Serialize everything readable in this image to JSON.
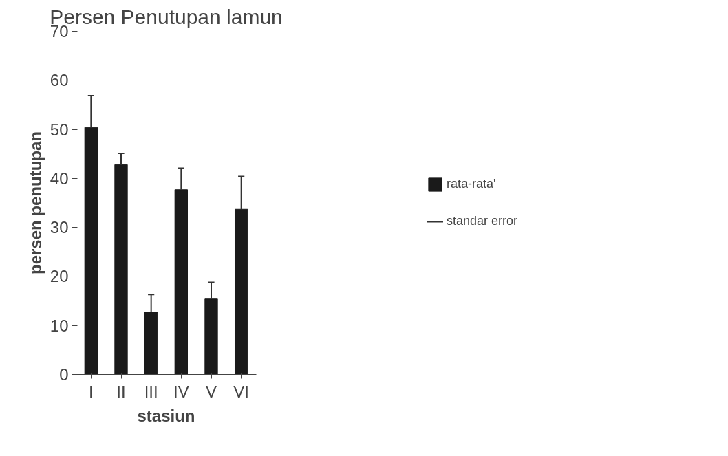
{
  "chart_data": {
    "type": "bar",
    "title": "Persen Penutupan lamun",
    "xlabel": "stasiun",
    "ylabel": "persen penutupan",
    "categories": [
      "I",
      "II",
      "III",
      "IV",
      "V",
      "VI"
    ],
    "series": [
      {
        "name": "rata-rata'",
        "color": "#1a1a1a",
        "values": [
          50.4,
          42.8,
          12.7,
          37.7,
          15.4,
          33.7
        ],
        "errors": [
          [
            50.4,
            56.9
          ],
          [
            42.8,
            45.1
          ],
          [
            12.7,
            16.3
          ],
          [
            37.7,
            42.1
          ],
          [
            15.4,
            18.8
          ],
          [
            33.7,
            40.4
          ]
        ]
      }
    ],
    "annotations": [
      "standar error"
    ],
    "ylim": [
      0,
      70
    ],
    "yticks": [
      0,
      10,
      20,
      30,
      40,
      50,
      60,
      70
    ],
    "grid": false,
    "legend": "right"
  }
}
